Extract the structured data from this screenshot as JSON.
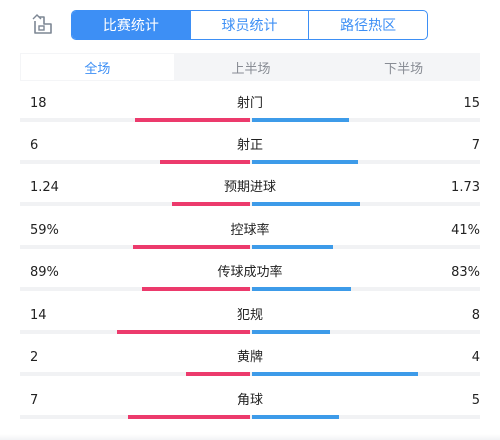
{
  "header": {
    "export_icon": "share-screenshot-icon",
    "tabs": [
      {
        "label": "比赛统计",
        "active": true
      },
      {
        "label": "球员统计",
        "active": false
      },
      {
        "label": "路径热区",
        "active": false
      }
    ]
  },
  "period_tabs": [
    {
      "label": "全场",
      "active": true
    },
    {
      "label": "上半场",
      "active": false
    },
    {
      "label": "下半场",
      "active": false
    }
  ],
  "colors": {
    "accent": "#3d8ff5",
    "home_bar": "#ec3a6c",
    "away_bar": "#3d9be9",
    "track": "#f1f2f4"
  },
  "stats": [
    {
      "label": "射门",
      "home": "18",
      "away": "15",
      "home_share": 0.5,
      "away_share": 0.42
    },
    {
      "label": "射正",
      "home": "6",
      "away": "7",
      "home_share": 0.39,
      "away_share": 0.46
    },
    {
      "label": "预期进球",
      "home": "1.24",
      "away": "1.73",
      "home_share": 0.34,
      "away_share": 0.47
    },
    {
      "label": "控球率",
      "home": "59%",
      "away": "41%",
      "home_share": 0.51,
      "away_share": 0.35
    },
    {
      "label": "传球成功率",
      "home": "89%",
      "away": "83%",
      "home_share": 0.47,
      "away_share": 0.43
    },
    {
      "label": "犯规",
      "home": "14",
      "away": "8",
      "home_share": 0.58,
      "away_share": 0.34
    },
    {
      "label": "黄牌",
      "home": "2",
      "away": "4",
      "home_share": 0.28,
      "away_share": 0.72
    },
    {
      "label": "角球",
      "home": "7",
      "away": "5",
      "home_share": 0.53,
      "away_share": 0.38
    }
  ]
}
